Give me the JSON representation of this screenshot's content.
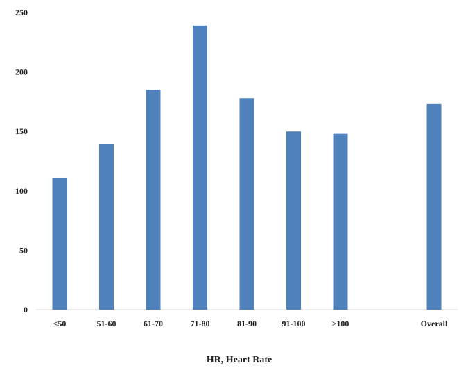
{
  "chart_data": {
    "type": "bar",
    "categories": [
      "<50",
      "51-60",
      "61-70",
      "71-80",
      "81-90",
      "91-100",
      ">100",
      "",
      "Overall"
    ],
    "values": [
      111,
      139,
      185,
      239,
      178,
      150,
      148,
      null,
      173
    ],
    "title": "",
    "xlabel": "HR, Heart Rate",
    "ylabel": "",
    "ylim": [
      0,
      250
    ],
    "yticks": [
      "0",
      "50",
      "100",
      "150",
      "200",
      "250"
    ],
    "grid": false,
    "legend": "none",
    "bar_color": "#4f81bd"
  }
}
